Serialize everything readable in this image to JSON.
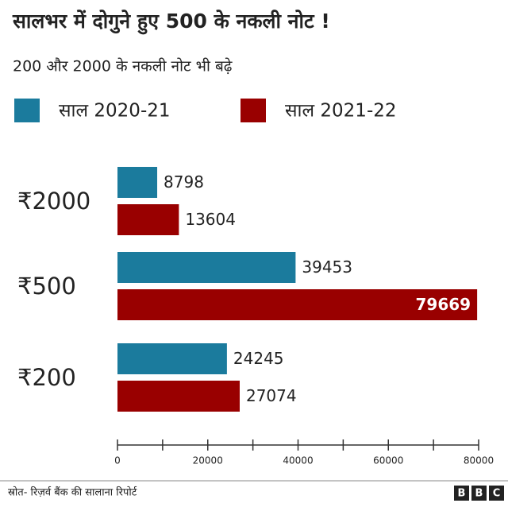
{
  "chart_data": {
    "type": "bar",
    "orientation": "horizontal",
    "title": "सालभर में दोगुने हुए 500 के नकली नोट !",
    "subtitle": "200 और 2000 के नकली नोट भी बढ़े",
    "categories": [
      "₹2000",
      "₹500",
      "₹200"
    ],
    "series": [
      {
        "name": "साल 2020-21",
        "color": "#1b7b9d",
        "values": [
          8798,
          39453,
          24245
        ]
      },
      {
        "name": "साल 2021-22",
        "color": "#990000",
        "values": [
          13604,
          79669,
          27074
        ]
      }
    ],
    "xlim": [
      0,
      80000
    ],
    "xticks": [
      0,
      20000,
      40000,
      60000,
      80000
    ],
    "xminorticks": [
      10000,
      30000,
      50000,
      70000
    ],
    "source": "स्रोत- रिज़र्व बैंक की सालाना रिपोर्ट",
    "logo": [
      "B",
      "B",
      "C"
    ]
  }
}
